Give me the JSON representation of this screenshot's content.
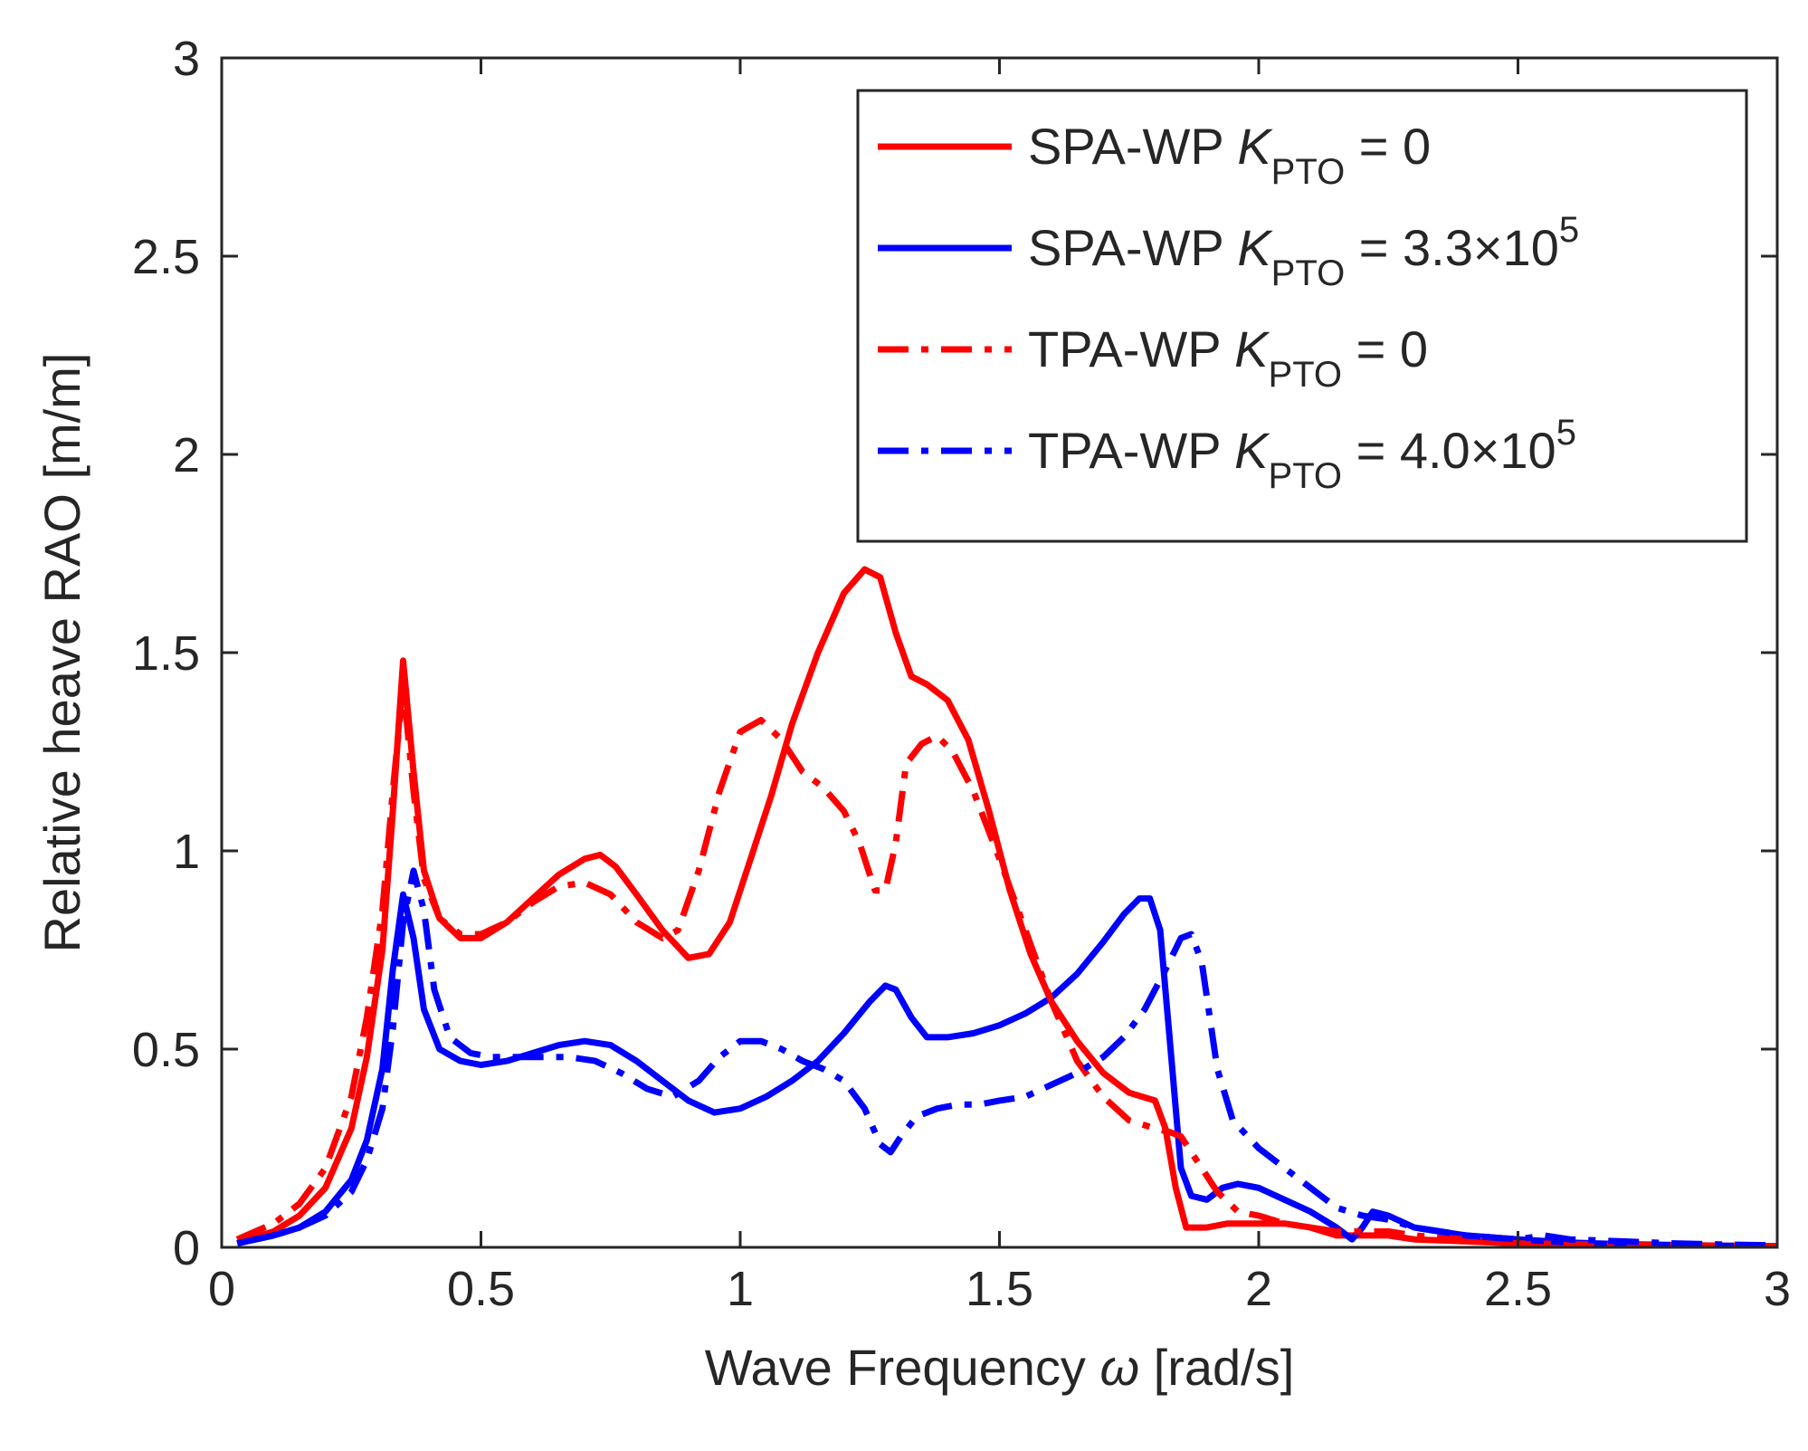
{
  "chart_data": {
    "type": "line",
    "title": "",
    "xlabel": "Wave Frequency ω [rad/s]",
    "xlabel_parts": {
      "main": "Wave Frequency ",
      "symbol": "ω",
      "unit": " [rad/s]"
    },
    "ylabel": "Relative heave RAO [m/m]",
    "xlim": [
      0,
      3
    ],
    "ylim": [
      0,
      3
    ],
    "xticks": [
      0,
      0.5,
      1,
      1.5,
      2,
      2.5,
      3
    ],
    "xtick_labels": [
      "0",
      "0.5",
      "1",
      "1.5",
      "2",
      "2.5",
      "3"
    ],
    "yticks": [
      0,
      0.5,
      1,
      1.5,
      2,
      2.5,
      3
    ],
    "ytick_labels": [
      "0",
      "0.5",
      "1",
      "1.5",
      "2",
      "2.5",
      "3"
    ],
    "grid": false,
    "legend_position": "top-right",
    "series": [
      {
        "name": "SPA-WP K_PTO = 0",
        "legend": {
          "prefix": "SPA-WP ",
          "symbol": "K",
          "sub": "PTO",
          "suffix": " = 0"
        },
        "color": "#ff0000",
        "style": "solid",
        "x": [
          0.03,
          0.1,
          0.15,
          0.2,
          0.25,
          0.28,
          0.31,
          0.33,
          0.35,
          0.37,
          0.39,
          0.42,
          0.46,
          0.5,
          0.55,
          0.6,
          0.65,
          0.7,
          0.73,
          0.76,
          0.8,
          0.85,
          0.9,
          0.94,
          0.98,
          1.02,
          1.06,
          1.1,
          1.15,
          1.2,
          1.24,
          1.27,
          1.3,
          1.33,
          1.36,
          1.4,
          1.44,
          1.48,
          1.52,
          1.56,
          1.6,
          1.65,
          1.7,
          1.75,
          1.8,
          1.82,
          1.84,
          1.86,
          1.9,
          1.94,
          2.0,
          2.05,
          2.1,
          2.15,
          2.2,
          2.25,
          2.3,
          2.4,
          2.5,
          2.6,
          2.7,
          2.8,
          2.9,
          3.0
        ],
        "y": [
          0.01,
          0.04,
          0.08,
          0.15,
          0.3,
          0.48,
          0.75,
          1.1,
          1.48,
          1.2,
          0.95,
          0.83,
          0.78,
          0.78,
          0.82,
          0.88,
          0.94,
          0.98,
          0.99,
          0.96,
          0.89,
          0.8,
          0.73,
          0.74,
          0.82,
          0.98,
          1.14,
          1.32,
          1.5,
          1.65,
          1.71,
          1.69,
          1.55,
          1.44,
          1.42,
          1.38,
          1.28,
          1.1,
          0.9,
          0.74,
          0.62,
          0.52,
          0.44,
          0.39,
          0.37,
          0.3,
          0.15,
          0.05,
          0.05,
          0.06,
          0.06,
          0.06,
          0.05,
          0.03,
          0.03,
          0.03,
          0.02,
          0.015,
          0.01,
          0.008,
          0.006,
          0.005,
          0.004,
          0.003
        ]
      },
      {
        "name": "SPA-WP K_PTO = 3.3×10^5",
        "legend": {
          "prefix": "SPA-WP ",
          "symbol": "K",
          "sub": "PTO",
          "suffix": " = 3.3×10",
          "sup": "5"
        },
        "color": "#0000ff",
        "style": "solid",
        "x": [
          0.03,
          0.1,
          0.15,
          0.2,
          0.25,
          0.28,
          0.31,
          0.33,
          0.35,
          0.37,
          0.39,
          0.42,
          0.46,
          0.5,
          0.55,
          0.6,
          0.65,
          0.7,
          0.75,
          0.8,
          0.85,
          0.9,
          0.95,
          1.0,
          1.05,
          1.1,
          1.15,
          1.2,
          1.25,
          1.28,
          1.3,
          1.33,
          1.36,
          1.4,
          1.45,
          1.5,
          1.55,
          1.6,
          1.65,
          1.7,
          1.74,
          1.77,
          1.79,
          1.81,
          1.83,
          1.85,
          1.87,
          1.9,
          1.93,
          1.96,
          2.0,
          2.05,
          2.1,
          2.15,
          2.18,
          2.2,
          2.22,
          2.25,
          2.3,
          2.4,
          2.5,
          2.6,
          2.7,
          2.8,
          2.9,
          3.0
        ],
        "y": [
          0.01,
          0.03,
          0.05,
          0.09,
          0.17,
          0.27,
          0.45,
          0.7,
          0.89,
          0.78,
          0.6,
          0.5,
          0.47,
          0.46,
          0.47,
          0.49,
          0.51,
          0.52,
          0.51,
          0.47,
          0.42,
          0.37,
          0.34,
          0.35,
          0.38,
          0.42,
          0.47,
          0.54,
          0.62,
          0.66,
          0.65,
          0.58,
          0.53,
          0.53,
          0.54,
          0.56,
          0.59,
          0.63,
          0.69,
          0.77,
          0.84,
          0.88,
          0.88,
          0.8,
          0.5,
          0.2,
          0.13,
          0.12,
          0.15,
          0.16,
          0.15,
          0.12,
          0.09,
          0.05,
          0.02,
          0.05,
          0.09,
          0.08,
          0.05,
          0.03,
          0.02,
          0.012,
          0.008,
          0.006,
          0.004,
          0.003
        ]
      },
      {
        "name": "TPA-WP K_PTO = 0",
        "legend": {
          "prefix": "TPA-WP ",
          "symbol": "K",
          "sub": "PTO",
          "suffix": " = 0"
        },
        "color": "#ff0000",
        "style": "dashdot",
        "x": [
          0.03,
          0.1,
          0.15,
          0.2,
          0.25,
          0.28,
          0.31,
          0.33,
          0.35,
          0.37,
          0.39,
          0.42,
          0.46,
          0.5,
          0.55,
          0.6,
          0.65,
          0.7,
          0.75,
          0.8,
          0.85,
          0.88,
          0.92,
          0.96,
          1.0,
          1.04,
          1.08,
          1.12,
          1.16,
          1.2,
          1.23,
          1.26,
          1.28,
          1.3,
          1.32,
          1.35,
          1.38,
          1.41,
          1.45,
          1.5,
          1.55,
          1.6,
          1.65,
          1.7,
          1.75,
          1.8,
          1.83,
          1.85,
          1.88,
          1.92,
          1.96,
          2.0,
          2.05,
          2.1,
          2.15,
          2.2,
          2.25,
          2.3,
          2.4,
          2.5,
          2.6,
          2.7,
          2.8,
          2.9,
          3.0
        ],
        "y": [
          0.02,
          0.06,
          0.11,
          0.2,
          0.38,
          0.58,
          0.85,
          1.15,
          1.42,
          1.15,
          0.93,
          0.83,
          0.79,
          0.79,
          0.82,
          0.87,
          0.91,
          0.92,
          0.89,
          0.82,
          0.78,
          0.8,
          0.95,
          1.15,
          1.3,
          1.33,
          1.28,
          1.2,
          1.16,
          1.1,
          1.02,
          0.9,
          0.9,
          1.02,
          1.22,
          1.27,
          1.29,
          1.25,
          1.15,
          0.98,
          0.8,
          0.62,
          0.47,
          0.38,
          0.32,
          0.3,
          0.29,
          0.28,
          0.22,
          0.14,
          0.09,
          0.08,
          0.06,
          0.05,
          0.04,
          0.04,
          0.04,
          0.03,
          0.02,
          0.01,
          0.008,
          0.006,
          0.005,
          0.004,
          0.003
        ]
      },
      {
        "name": "TPA-WP K_PTO = 4.0×10^5",
        "legend": {
          "prefix": "TPA-WP ",
          "symbol": "K",
          "sub": "PTO",
          "suffix": " = 4.0×10",
          "sup": "5"
        },
        "color": "#0000ff",
        "style": "dashdot",
        "x": [
          0.03,
          0.1,
          0.15,
          0.2,
          0.25,
          0.28,
          0.31,
          0.33,
          0.35,
          0.37,
          0.39,
          0.41,
          0.44,
          0.48,
          0.52,
          0.57,
          0.62,
          0.67,
          0.72,
          0.77,
          0.82,
          0.87,
          0.92,
          0.96,
          1.0,
          1.04,
          1.08,
          1.12,
          1.16,
          1.2,
          1.24,
          1.27,
          1.29,
          1.31,
          1.34,
          1.38,
          1.42,
          1.46,
          1.5,
          1.55,
          1.6,
          1.65,
          1.7,
          1.74,
          1.78,
          1.82,
          1.85,
          1.87,
          1.89,
          1.92,
          1.95,
          2.0,
          2.05,
          2.1,
          2.15,
          2.2,
          2.25,
          2.3,
          2.4,
          2.5,
          2.55,
          2.6,
          2.7,
          2.8,
          2.9,
          3.0
        ],
        "y": [
          0.01,
          0.03,
          0.05,
          0.08,
          0.14,
          0.22,
          0.35,
          0.55,
          0.82,
          0.95,
          0.85,
          0.65,
          0.53,
          0.49,
          0.48,
          0.48,
          0.48,
          0.48,
          0.47,
          0.44,
          0.4,
          0.38,
          0.42,
          0.48,
          0.52,
          0.52,
          0.5,
          0.47,
          0.45,
          0.42,
          0.35,
          0.26,
          0.24,
          0.28,
          0.33,
          0.35,
          0.36,
          0.36,
          0.37,
          0.38,
          0.41,
          0.44,
          0.48,
          0.53,
          0.6,
          0.7,
          0.78,
          0.79,
          0.72,
          0.45,
          0.32,
          0.25,
          0.2,
          0.15,
          0.1,
          0.08,
          0.07,
          0.05,
          0.03,
          0.02,
          0.03,
          0.02,
          0.015,
          0.01,
          0.007,
          0.005
        ]
      }
    ]
  }
}
